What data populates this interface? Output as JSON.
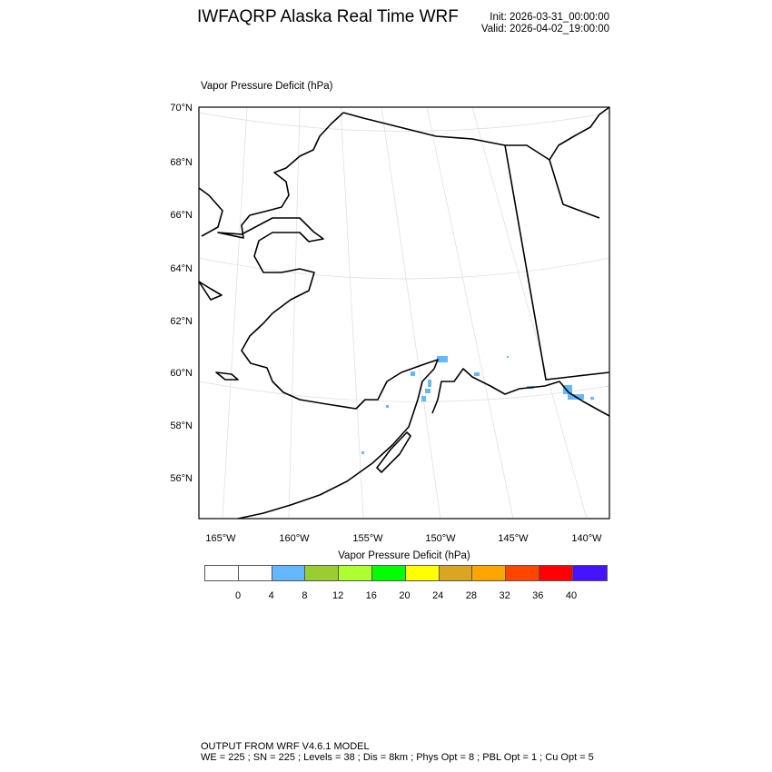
{
  "header": {
    "title": "IWFAQRP Alaska Real Time WRF",
    "init": "Init: 2026-03-31_00:00:00",
    "valid": "Valid: 2026-04-02_19:00:00"
  },
  "map": {
    "field_label": "Vapor Pressure Deficit   (hPa)",
    "lat_labels": [
      "70°N",
      "68°N",
      "66°N",
      "64°N",
      "62°N",
      "60°N",
      "58°N",
      "56°N"
    ],
    "lon_labels": [
      "165°W",
      "160°W",
      "155°W",
      "150°W",
      "145°W",
      "140°W"
    ],
    "vpd_present_bins": [
      "4-8"
    ]
  },
  "colorbar": {
    "title": "Vapor Pressure Deficit  (hPa)",
    "colors": [
      "#ffffff",
      "#ffffff",
      "#63b8ff",
      "#9acd32",
      "#adff2f",
      "#00ff00",
      "#ffff00",
      "#daa520",
      "#ffa500",
      "#ff4500",
      "#ff0000",
      "#4413ff"
    ],
    "labels": [
      "0",
      "4",
      "8",
      "12",
      "16",
      "20",
      "24",
      "28",
      "32",
      "36",
      "40"
    ]
  },
  "footer": {
    "line1": "OUTPUT FROM WRF V4.6.1 MODEL",
    "line2": "WE = 225 ; SN = 225 ; Levels = 38 ; Dis = 8km ; Phys Opt = 8 ; PBL Opt = 1 ; Cu Opt = 5"
  }
}
